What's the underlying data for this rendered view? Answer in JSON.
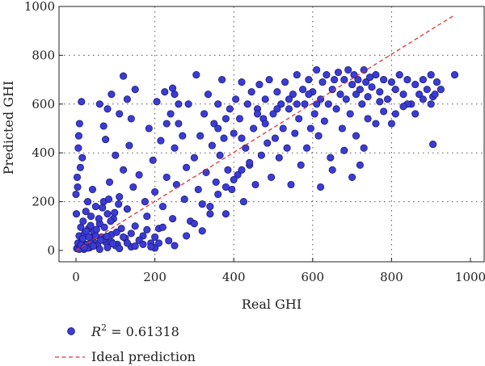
{
  "chart_data": {
    "type": "scatter",
    "xlabel": "Real GHI",
    "ylabel": "Predicted GHI",
    "xlim": [
      -50,
      1000
    ],
    "ylim": [
      -30,
      1000
    ],
    "xticks": [
      0,
      200,
      400,
      600,
      800,
      1000
    ],
    "yticks": [
      0,
      200,
      400,
      600,
      800,
      1000
    ],
    "xtick_labels": [
      "0",
      "200",
      "400",
      "600",
      "800",
      "1000"
    ],
    "ytick_labels": [
      "0",
      "200",
      "400",
      "600",
      "800",
      "1000"
    ],
    "grid": true,
    "legend_position": "bottom",
    "series": [
      {
        "name": "R² = 0.61318",
        "name_base": "R",
        "name_sup": "2",
        "name_rest": " = 0.61318",
        "marker": "circle",
        "color": "#3b3bd6",
        "edge_color": "#14146b",
        "points": [
          [
            2,
            8
          ],
          [
            5,
            30
          ],
          [
            8,
            60
          ],
          [
            10,
            15
          ],
          [
            12,
            95
          ],
          [
            15,
            40
          ],
          [
            18,
            120
          ],
          [
            20,
            5
          ],
          [
            22,
            70
          ],
          [
            25,
            160
          ],
          [
            28,
            25
          ],
          [
            30,
            200
          ],
          [
            32,
            90
          ],
          [
            35,
            12
          ],
          [
            38,
            140
          ],
          [
            40,
            45
          ],
          [
            42,
            250
          ],
          [
            45,
            75
          ],
          [
            48,
            30
          ],
          [
            50,
            180
          ],
          [
            3,
            300
          ],
          [
            6,
            420
          ],
          [
            9,
            520
          ],
          [
            14,
            610
          ],
          [
            4,
            260
          ],
          [
            7,
            470
          ],
          [
            16,
            380
          ],
          [
            11,
            340
          ],
          [
            1,
            150
          ],
          [
            0,
            230
          ],
          [
            55,
            20
          ],
          [
            60,
            110
          ],
          [
            65,
            55
          ],
          [
            70,
            200
          ],
          [
            75,
            35
          ],
          [
            80,
            150
          ],
          [
            85,
            280
          ],
          [
            90,
            65
          ],
          [
            95,
            130
          ],
          [
            100,
            390
          ],
          [
            105,
            25
          ],
          [
            110,
            220
          ],
          [
            115,
            90
          ],
          [
            120,
            330
          ],
          [
            125,
            50
          ],
          [
            130,
            170
          ],
          [
            135,
            430
          ],
          [
            140,
            15
          ],
          [
            145,
            260
          ],
          [
            150,
            100
          ],
          [
            60,
            600
          ],
          [
            70,
            510
          ],
          [
            80,
            580
          ],
          [
            90,
            640
          ],
          [
            110,
            560
          ],
          [
            120,
            715
          ],
          [
            130,
            620
          ],
          [
            140,
            540
          ],
          [
            150,
            660
          ],
          [
            75,
            455
          ],
          [
            160,
            310
          ],
          [
            170,
            60
          ],
          [
            175,
            200
          ],
          [
            180,
            140
          ],
          [
            185,
            500
          ],
          [
            190,
            30
          ],
          [
            195,
            370
          ],
          [
            200,
            240
          ],
          [
            205,
            610
          ],
          [
            210,
            90
          ],
          [
            215,
            450
          ],
          [
            220,
            180
          ],
          [
            225,
            650
          ],
          [
            230,
            300
          ],
          [
            235,
            40
          ],
          [
            240,
            560
          ],
          [
            245,
            130
          ],
          [
            250,
            420
          ],
          [
            255,
            270
          ],
          [
            260,
            520
          ],
          [
            200,
            10
          ],
          [
            230,
            520
          ],
          [
            245,
            665
          ],
          [
            250,
            640
          ],
          [
            260,
            600
          ],
          [
            270,
            470
          ],
          [
            275,
            210
          ],
          [
            280,
            340
          ],
          [
            285,
            600
          ],
          [
            290,
            120
          ],
          [
            300,
            380
          ],
          [
            305,
            720
          ],
          [
            310,
            250
          ],
          [
            315,
            470
          ],
          [
            320,
            80
          ],
          [
            325,
            560
          ],
          [
            330,
            320
          ],
          [
            335,
            640
          ],
          [
            340,
            180
          ],
          [
            345,
            430
          ],
          [
            350,
            520
          ],
          [
            355,
            280
          ],
          [
            360,
            600
          ],
          [
            365,
            390
          ],
          [
            370,
            700
          ],
          [
            375,
            460
          ],
          [
            380,
            150
          ],
          [
            385,
            330
          ],
          [
            390,
            580
          ],
          [
            395,
            250
          ],
          [
            400,
            480
          ],
          [
            405,
            620
          ],
          [
            410,
            310
          ],
          [
            415,
            540
          ],
          [
            420,
            690
          ],
          [
            425,
            200
          ],
          [
            430,
            420
          ],
          [
            435,
            600
          ],
          [
            440,
            350
          ],
          [
            445,
            650
          ],
          [
            450,
            500
          ],
          [
            455,
            270
          ],
          [
            460,
            580
          ],
          [
            465,
            680
          ],
          [
            470,
            390
          ],
          [
            475,
            540
          ],
          [
            480,
            620
          ],
          [
            485,
            440
          ],
          [
            490,
            700
          ],
          [
            495,
            300
          ],
          [
            500,
            560
          ],
          [
            505,
            460
          ],
          [
            510,
            650
          ],
          [
            515,
            380
          ],
          [
            520,
            600
          ],
          [
            525,
            500
          ],
          [
            530,
            690
          ],
          [
            535,
            420
          ],
          [
            540,
            580
          ],
          [
            545,
            270
          ],
          [
            550,
            640
          ],
          [
            555,
            480
          ],
          [
            560,
            720
          ],
          [
            565,
            540
          ],
          [
            570,
            350
          ],
          [
            575,
            660
          ],
          [
            580,
            600
          ],
          [
            585,
            420
          ],
          [
            590,
            700
          ],
          [
            595,
            500
          ],
          [
            600,
            650
          ],
          [
            605,
            560
          ],
          [
            610,
            740
          ],
          [
            615,
            470
          ],
          [
            620,
            620
          ],
          [
            625,
            690
          ],
          [
            630,
            530
          ],
          [
            635,
            720
          ],
          [
            640,
            600
          ],
          [
            645,
            380
          ],
          [
            650,
            660
          ],
          [
            655,
            700
          ],
          [
            660,
            580
          ],
          [
            665,
            730
          ],
          [
            670,
            640
          ],
          [
            675,
            500
          ],
          [
            680,
            700
          ],
          [
            685,
            620
          ],
          [
            690,
            740
          ],
          [
            695,
            560
          ],
          [
            700,
            680
          ],
          [
            705,
            720
          ],
          [
            710,
            640
          ],
          [
            715,
            700
          ],
          [
            720,
            660
          ],
          [
            725,
            600
          ],
          [
            730,
            740
          ],
          [
            735,
            690
          ],
          [
            740,
            630
          ],
          [
            745,
            710
          ],
          [
            750,
            670
          ],
          [
            760,
            720
          ],
          [
            770,
            650
          ],
          [
            780,
            700
          ],
          [
            790,
            620
          ],
          [
            800,
            690
          ],
          [
            810,
            660
          ],
          [
            820,
            720
          ],
          [
            830,
            640
          ],
          [
            840,
            700
          ],
          [
            850,
            600
          ],
          [
            860,
            680
          ],
          [
            870,
            640
          ],
          [
            880,
            700
          ],
          [
            890,
            660
          ],
          [
            900,
            720
          ],
          [
            905,
            630
          ],
          [
            915,
            690
          ],
          [
            925,
            660
          ],
          [
            960,
            720
          ],
          [
            620,
            260
          ],
          [
            650,
            330
          ],
          [
            680,
            410
          ],
          [
            700,
            300
          ],
          [
            720,
            350
          ],
          [
            730,
            420
          ],
          [
            760,
            520
          ],
          [
            780,
            570
          ],
          [
            810,
            560
          ],
          [
            840,
            600
          ],
          [
            880,
            620
          ],
          [
            900,
            600
          ],
          [
            905,
            435
          ],
          [
            910,
            640
          ],
          [
            860,
            560
          ],
          [
            830,
            590
          ],
          [
            800,
            520
          ],
          [
            770,
            610
          ],
          [
            740,
            540
          ],
          [
            710,
            470
          ],
          [
            30,
            10
          ],
          [
            40,
            25
          ],
          [
            50,
            60
          ],
          [
            60,
            5
          ],
          [
            70,
            45
          ],
          [
            80,
            12
          ],
          [
            90,
            35
          ],
          [
            100,
            20
          ],
          [
            110,
            8
          ],
          [
            120,
            55
          ],
          [
            130,
            30
          ],
          [
            140,
            70
          ],
          [
            150,
            18
          ],
          [
            160,
            42
          ],
          [
            170,
            25
          ],
          [
            180,
            85
          ],
          [
            190,
            15
          ],
          [
            200,
            55
          ],
          [
            210,
            30
          ],
          [
            220,
            95
          ],
          [
            250,
            20
          ],
          [
            280,
            60
          ],
          [
            300,
            110
          ],
          [
            320,
            190
          ],
          [
            340,
            150
          ],
          [
            360,
            230
          ],
          [
            380,
            260
          ],
          [
            400,
            290
          ],
          [
            420,
            330
          ],
          [
            440,
            360
          ],
          [
            8,
            5
          ],
          [
            13,
            22
          ],
          [
            17,
            48
          ],
          [
            21,
            12
          ],
          [
            26,
            78
          ],
          [
            33,
            55
          ],
          [
            37,
            102
          ],
          [
            44,
            18
          ],
          [
            52,
            86
          ],
          [
            58,
            130
          ],
          [
            63,
            42
          ],
          [
            67,
            175
          ],
          [
            72,
            95
          ],
          [
            78,
            58
          ],
          [
            83,
            210
          ],
          [
            88,
            120
          ],
          [
            93,
            28
          ],
          [
            98,
            155
          ],
          [
            103,
            75
          ],
          [
            108,
            190
          ],
          [
            360,
            500
          ],
          [
            380,
            540
          ],
          [
            420,
            460
          ],
          [
            460,
            560
          ],
          [
            480,
            520
          ],
          [
            510,
            580
          ],
          [
            540,
            620
          ],
          [
            560,
            600
          ],
          [
            590,
            640
          ],
          [
            610,
            600
          ]
        ]
      },
      {
        "name": "Ideal prediction",
        "marker": "dashed-line",
        "color": "#e3342f",
        "line": [
          [
            0,
            0
          ],
          [
            960,
            965
          ]
        ]
      }
    ]
  }
}
